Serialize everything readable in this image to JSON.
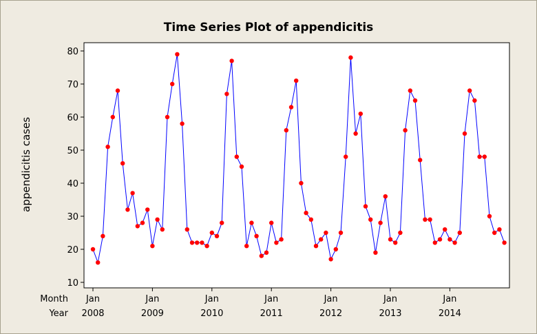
{
  "chart_data": {
    "type": "line",
    "title": "Time Series Plot of appendicitis",
    "xlabel": "",
    "ylabel": "appendicitis cases",
    "ylim": [
      10,
      80
    ],
    "yticks": [
      10,
      20,
      30,
      40,
      50,
      60,
      70,
      80
    ],
    "x_row_labels": [
      "Month",
      "Year"
    ],
    "x_ticks": [
      {
        "month": "Jan",
        "year": "2008",
        "index": 0
      },
      {
        "month": "Jan",
        "year": "2009",
        "index": 12
      },
      {
        "month": "Jan",
        "year": "2010",
        "index": 24
      },
      {
        "month": "Jan",
        "year": "2011",
        "index": 36
      },
      {
        "month": "Jan",
        "year": "2012",
        "index": 48
      },
      {
        "month": "Jan",
        "year": "2013",
        "index": 60
      },
      {
        "month": "Jan",
        "year": "2014",
        "index": 72
      }
    ],
    "series": [
      {
        "values": [
          20,
          16,
          24,
          51,
          60,
          68,
          46,
          32,
          37,
          27,
          28,
          32,
          21,
          29,
          26,
          60,
          70,
          79,
          58,
          26,
          22,
          22,
          22,
          21,
          25,
          24,
          28,
          67,
          77,
          48,
          45,
          21,
          28,
          24,
          18,
          19,
          28,
          22,
          23,
          56,
          63,
          71,
          40,
          31,
          29,
          21,
          23,
          25,
          17,
          20,
          25,
          48,
          78,
          55,
          61,
          33,
          29,
          19,
          28,
          36,
          23,
          22,
          25,
          56,
          68,
          65,
          47,
          29,
          29,
          22,
          23,
          26,
          23,
          22,
          25,
          55,
          68,
          65,
          48,
          48,
          30,
          25,
          26,
          22
        ]
      }
    ],
    "line_color": "#0000ff",
    "marker_color": "#ff0000",
    "grid": false
  }
}
